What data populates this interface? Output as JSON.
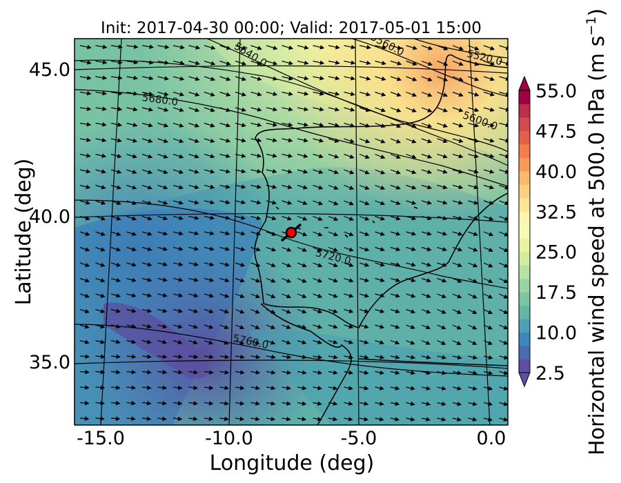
{
  "title": "Init: 2017-04-30 00:00; Valid: 2017-05-01 15:00",
  "xlabel": "Longitude (deg)",
  "ylabel": "Latitude (deg)",
  "xticks": [
    "-15.0",
    "-10.0",
    "-5.0",
    "0.0"
  ],
  "yticks": [
    "45.0",
    "40.0",
    "35.0"
  ],
  "colorbar": {
    "label": "Horizontal wind speed at 500.0 hPa (m s",
    "label_exp": "−1",
    "label_close": ")",
    "ticks": [
      "55.0",
      "47.5",
      "40.0",
      "32.5",
      "25.0",
      "17.5",
      "10.0",
      "2.5"
    ],
    "values": [
      55.0,
      47.5,
      40.0,
      32.5,
      25.0,
      17.5,
      10.0,
      2.5
    ],
    "range": [
      2.5,
      55.0
    ],
    "colors": [
      "#5e4fa2",
      "#4a6db0",
      "#3c87bb",
      "#4ba0b1",
      "#62b6a8",
      "#7bc6a5",
      "#98d4a4",
      "#b6e2a2",
      "#d2ed9c",
      "#e9f59e",
      "#f6fbb2",
      "#fef6b0",
      "#fee593",
      "#fdd07e",
      "#fdb869",
      "#f99b57",
      "#f47d4b",
      "#e65f47",
      "#d24a4c",
      "#bb2f4a",
      "#9e0142"
    ]
  },
  "map": {
    "lon_range": [
      -16.0,
      0.0
    ],
    "lat_range": [
      33.0,
      46.0
    ],
    "marker": {
      "lon": -7.6,
      "lat": 39.3,
      "color": "#ff0000"
    },
    "contours": [
      {
        "label": "5520.0"
      },
      {
        "label": "5560.0"
      },
      {
        "label": "5600.0"
      },
      {
        "label": "5640.0"
      },
      {
        "label": "5680.0"
      },
      {
        "label": "5720.0"
      },
      {
        "label": "5760.0"
      }
    ]
  }
}
